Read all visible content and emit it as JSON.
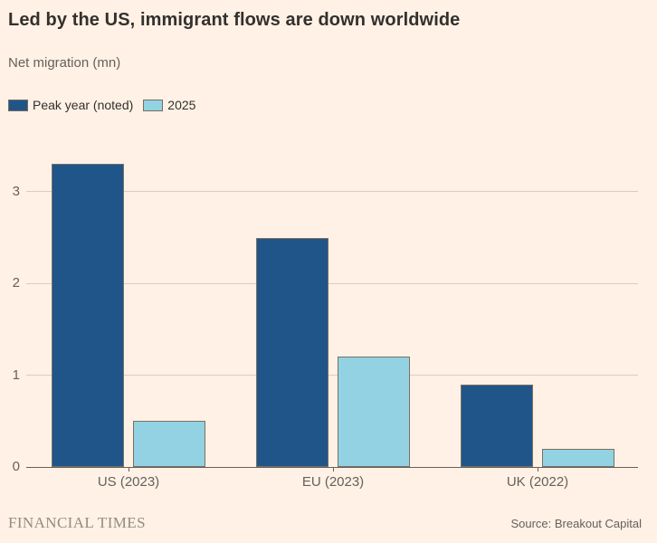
{
  "title": "Led by the US, immigrant flows are down worldwide",
  "subtitle": "Net migration (mn)",
  "legend": [
    {
      "label": "Peak year (noted)",
      "color": "#20558A"
    },
    {
      "label": "2025",
      "color": "#93D2E3"
    }
  ],
  "footer": {
    "brand": "FINANCIAL TIMES",
    "source": "Source: Breakout Capital"
  },
  "colors": {
    "background": "#FFF1E5",
    "title_text": "#33302E",
    "muted_text": "#66605C",
    "gridline": "#DACDC0",
    "axis": "#66605C",
    "bar_border": "#7A7062",
    "series_peak": "#20558A",
    "series_2025": "#93D2E3"
  },
  "chart_data": {
    "type": "bar",
    "title": "Led by the US, immigrant flows are down worldwide",
    "ylabel": "Net migration (mn)",
    "xlabel": "",
    "categories": [
      "US (2023)",
      "EU (2023)",
      "UK (2022)"
    ],
    "series": [
      {
        "name": "Peak year (noted)",
        "color": "#20558A",
        "values": [
          3.3,
          2.5,
          0.9
        ]
      },
      {
        "name": "2025",
        "color": "#93D2E3",
        "values": [
          0.5,
          1.2,
          0.2
        ]
      }
    ],
    "yticks": [
      0,
      1,
      2,
      3
    ],
    "ylim": [
      0,
      3.61
    ],
    "grid": true,
    "legend_position": "top-left"
  }
}
